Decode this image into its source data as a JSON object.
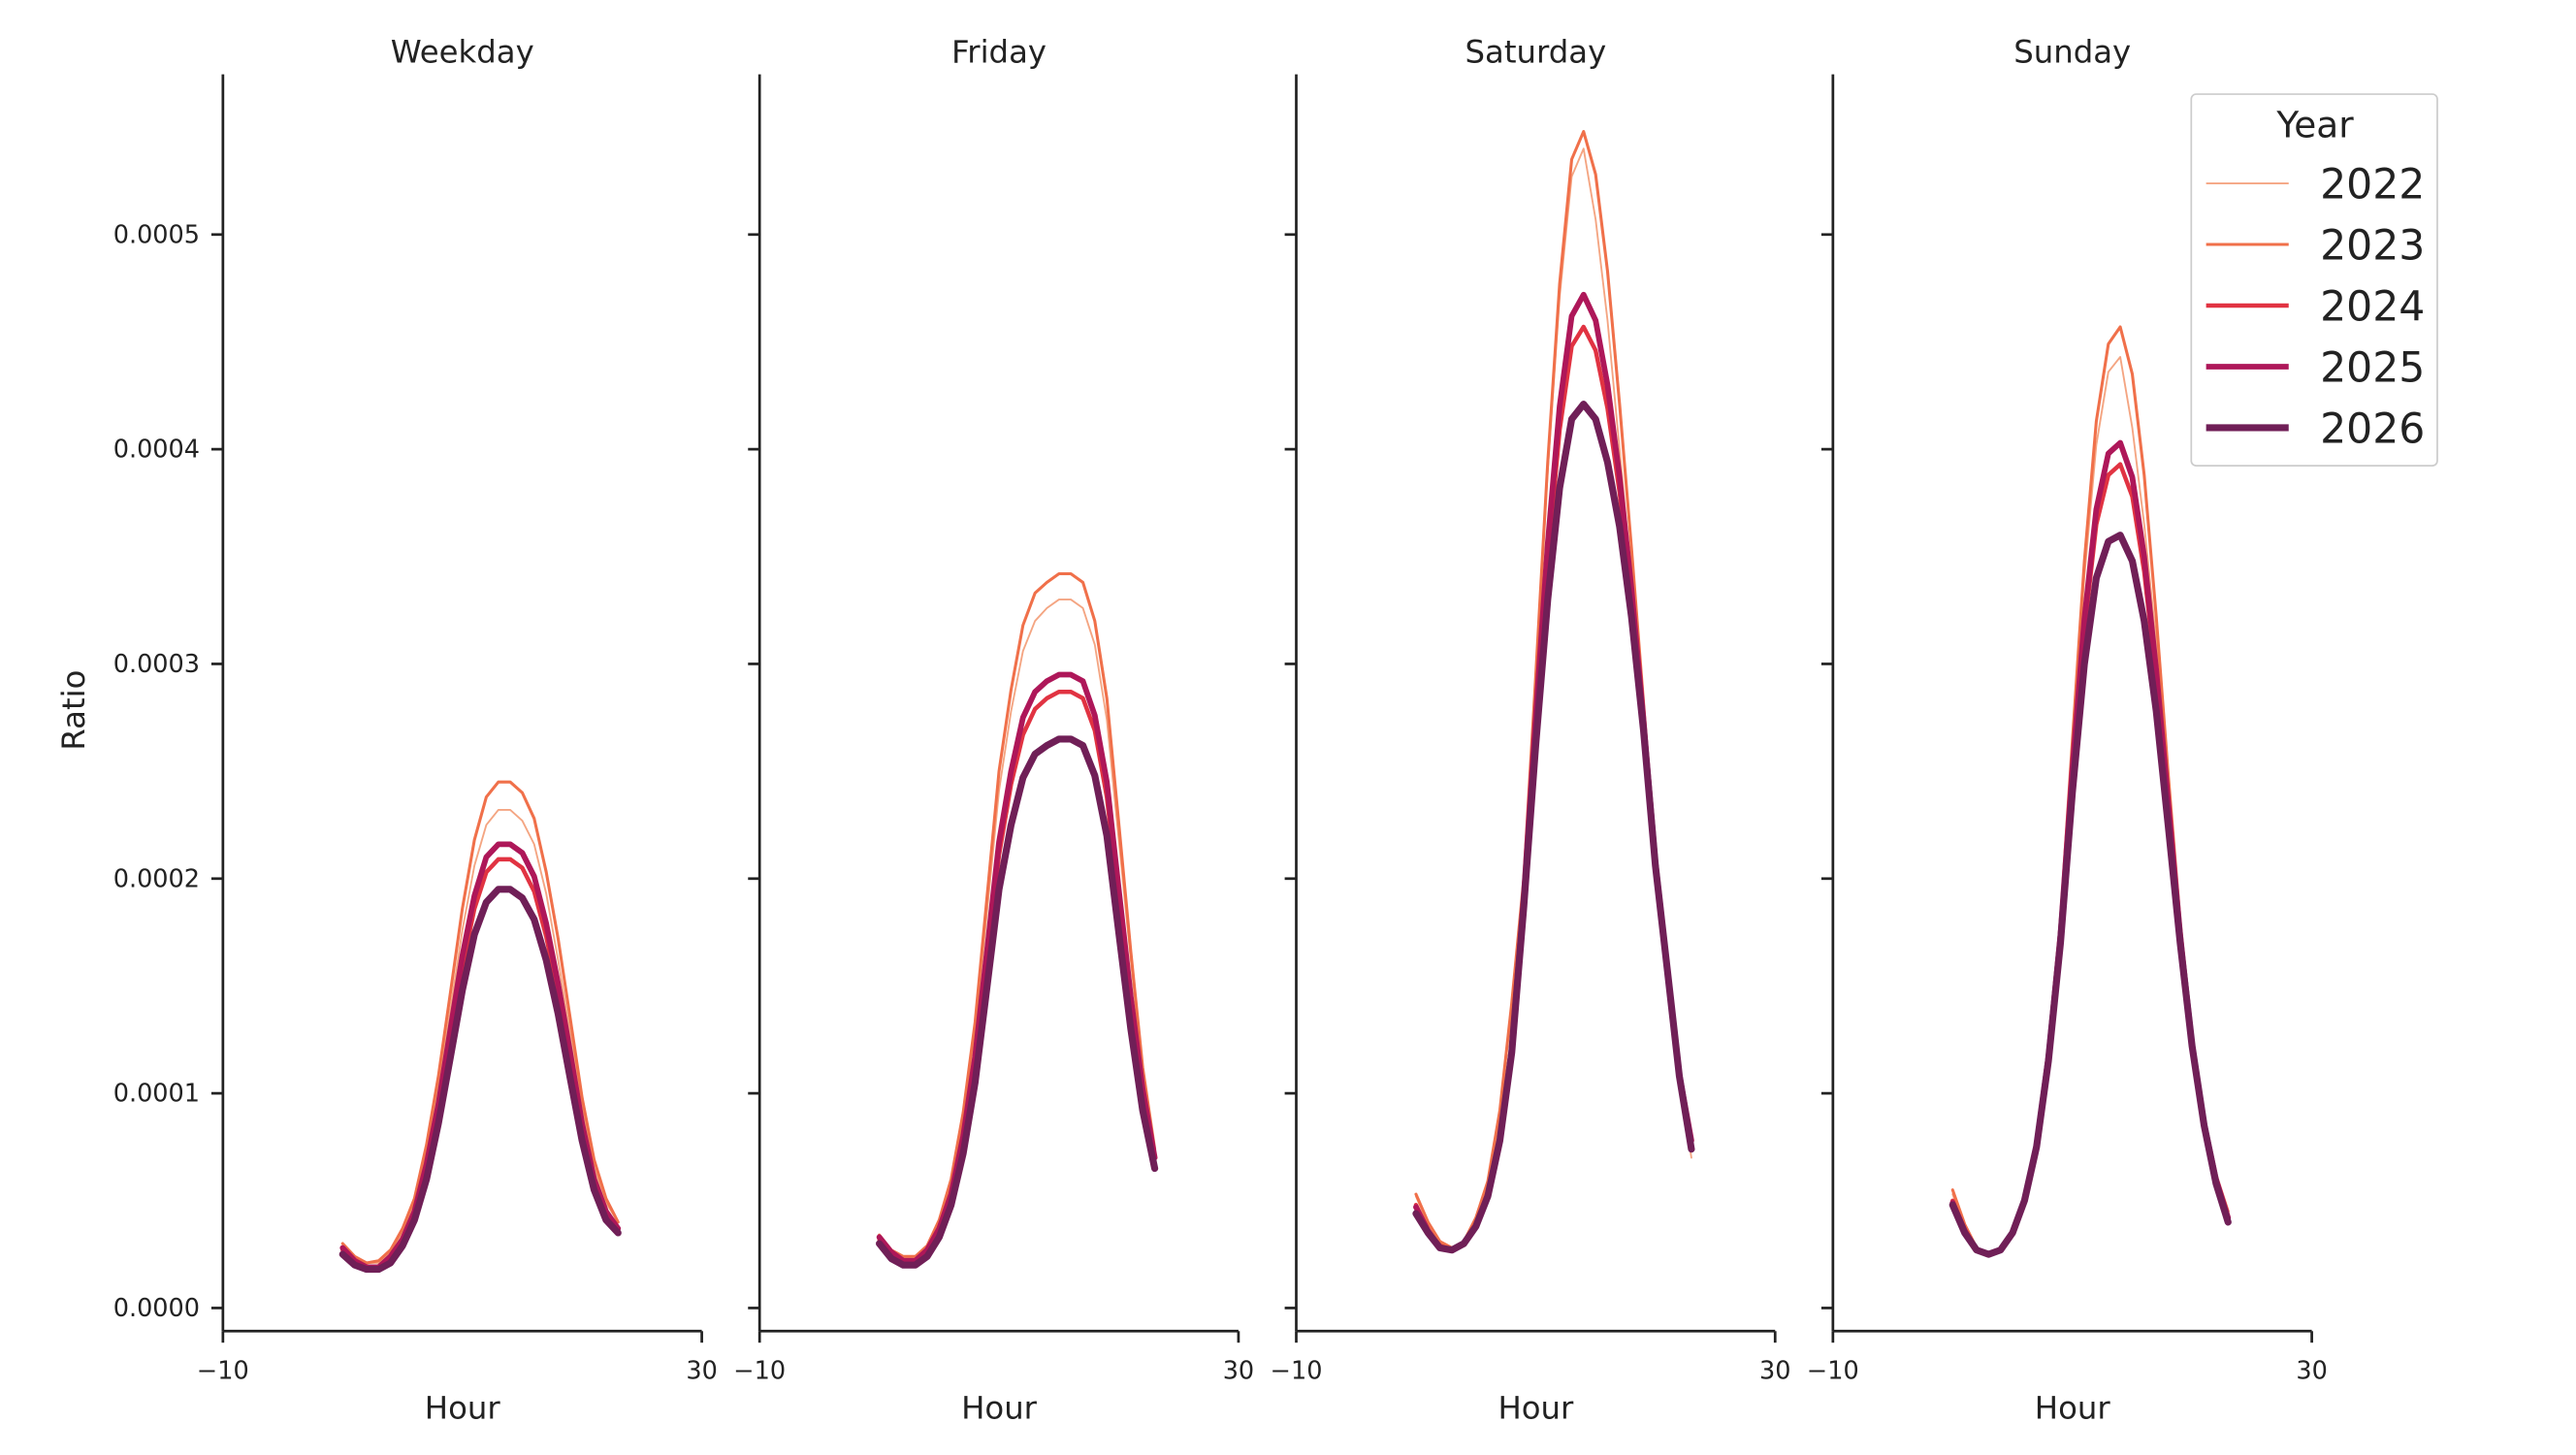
{
  "chart_data": {
    "type": "line",
    "ylabel": "Ratio",
    "ylim": [
      -1.2e-05,
      0.000575
    ],
    "yticks": [
      "0.0000",
      "0.0001",
      "0.0002",
      "0.0003",
      "0.0004",
      "0.0005"
    ],
    "ytick_values": [
      0,
      0.0001,
      0.0002,
      0.0003,
      0.0004,
      0.0005
    ],
    "legend": {
      "title": "Year",
      "placement": "top-right",
      "entries": [
        "2022",
        "2023",
        "2024",
        "2025",
        "2026"
      ]
    },
    "grid": false,
    "series_styles": {
      "2022": {
        "color": "#f4a582"
      },
      "2023": {
        "color": "#f0704a"
      },
      "2024": {
        "color": "#e13342"
      },
      "2025": {
        "color": "#ae1759"
      },
      "2026": {
        "color": "#701f57"
      }
    },
    "x": [
      0,
      1,
      2,
      3,
      4,
      5,
      6,
      7,
      8,
      9,
      10,
      11,
      12,
      13,
      14,
      15,
      16,
      17,
      18,
      19,
      20,
      21,
      22,
      23
    ],
    "panels": [
      {
        "title": "Weekday",
        "xlabel": "Hour",
        "xlim": [
          -10,
          30
        ],
        "xticks": [
          "−10",
          "30"
        ],
        "series": [
          {
            "name": "2022",
            "values": [
              3e-05,
              2.3e-05,
              2.1e-05,
              2.1e-05,
              2.6e-05,
              3.5e-05,
              4.9e-05,
              7.2e-05,
              0.000102,
              0.000139,
              0.000176,
              0.000206,
              0.000225,
              0.000232,
              0.000232,
              0.000227,
              0.000216,
              0.000193,
              0.000162,
              0.000128,
              9.3e-05,
              6.5e-05,
              4.9e-05,
              4e-05
            ]
          },
          {
            "name": "2023",
            "values": [
              3e-05,
              2.4e-05,
              2.1e-05,
              2.2e-05,
              2.7e-05,
              3.7e-05,
              5.1e-05,
              7.6e-05,
              0.000108,
              0.000147,
              0.000186,
              0.000218,
              0.000238,
              0.000245,
              0.000245,
              0.00024,
              0.000228,
              0.000203,
              0.000172,
              0.000135,
              9.8e-05,
              6.9e-05,
              5.1e-05,
              4e-05
            ]
          },
          {
            "name": "2024",
            "values": [
              2.7e-05,
              2.1e-05,
              1.9e-05,
              1.9e-05,
              2.3e-05,
              3.1e-05,
              4.4e-05,
              6.5e-05,
              9.2e-05,
              0.000125,
              0.000159,
              0.000186,
              0.000203,
              0.000209,
              0.000209,
              0.000205,
              0.000194,
              0.000173,
              0.000146,
              0.000115,
              8.4e-05,
              5.9e-05,
              4.4e-05,
              3.7e-05
            ]
          },
          {
            "name": "2025",
            "values": [
              2.8e-05,
              2.2e-05,
              1.9e-05,
              1.9e-05,
              2.4e-05,
              3.2e-05,
              4.5e-05,
              6.7e-05,
              9.5e-05,
              0.00013,
              0.000164,
              0.000192,
              0.00021,
              0.000216,
              0.000216,
              0.000212,
              0.000201,
              0.000179,
              0.000151,
              0.000119,
              8.6e-05,
              6e-05,
              4.5e-05,
              3.7e-05
            ]
          },
          {
            "name": "2026",
            "values": [
              2.5e-05,
              2e-05,
              1.8e-05,
              1.8e-05,
              2.1e-05,
              2.9e-05,
              4.1e-05,
              6e-05,
              8.6e-05,
              0.000117,
              0.000148,
              0.000174,
              0.000189,
              0.000195,
              0.000195,
              0.000191,
              0.000181,
              0.000162,
              0.000137,
              0.000107,
              7.8e-05,
              5.5e-05,
              4.1e-05,
              3.5e-05
            ]
          }
        ]
      },
      {
        "title": "Friday",
        "xlabel": "Hour",
        "xlim": [
          -10,
          30
        ],
        "xticks": [
          "−10",
          "30"
        ],
        "series": [
          {
            "name": "2022",
            "values": [
              3.4e-05,
              2.7e-05,
              2.3e-05,
              2.3e-05,
              2.8e-05,
              4e-05,
              5.8e-05,
              8.8e-05,
              0.000129,
              0.000185,
              0.000241,
              0.000278,
              0.000306,
              0.00032,
              0.000326,
              0.00033,
              0.00033,
              0.000326,
              0.000309,
              0.000274,
              0.000218,
              0.000162,
              0.00011,
              7.2e-05
            ]
          },
          {
            "name": "2023",
            "values": [
              3.4e-05,
              2.7e-05,
              2.4e-05,
              2.4e-05,
              2.9e-05,
              4.1e-05,
              6e-05,
              9.1e-05,
              0.000133,
              0.000192,
              0.00025,
              0.000288,
              0.000318,
              0.000333,
              0.000338,
              0.000342,
              0.000342,
              0.000338,
              0.00032,
              0.000284,
              0.000226,
              0.000166,
              0.000112,
              7.4e-05
            ]
          },
          {
            "name": "2024",
            "values": [
              3.2e-05,
              2.5e-05,
              2.2e-05,
              2.2e-05,
              2.6e-05,
              3.6e-05,
              5.2e-05,
              7.8e-05,
              0.000114,
              0.000162,
              0.000211,
              0.000244,
              0.000267,
              0.000279,
              0.000284,
              0.000287,
              0.000287,
              0.000284,
              0.000269,
              0.000238,
              0.00019,
              0.000141,
              0.0001,
              7e-05
            ]
          },
          {
            "name": "2025",
            "values": [
              3.3e-05,
              2.6e-05,
              2.2e-05,
              2.2e-05,
              2.7e-05,
              3.7e-05,
              5.3e-05,
              8e-05,
              0.000117,
              0.000167,
              0.000217,
              0.00025,
              0.000275,
              0.000287,
              0.000292,
              0.000295,
              0.000295,
              0.000292,
              0.000276,
              0.000245,
              0.000195,
              0.000145,
              0.000102,
              7e-05
            ]
          },
          {
            "name": "2026",
            "values": [
              3e-05,
              2.3e-05,
              2e-05,
              2e-05,
              2.4e-05,
              3.3e-05,
              4.8e-05,
              7.2e-05,
              0.000105,
              0.00015,
              0.000195,
              0.000225,
              0.000247,
              0.000258,
              0.000262,
              0.000265,
              0.000265,
              0.000262,
              0.000248,
              0.00022,
              0.000175,
              0.00013,
              9.2e-05,
              6.5e-05
            ]
          }
        ]
      },
      {
        "title": "Saturday",
        "xlabel": "Hour",
        "xlim": [
          -10,
          30
        ],
        "xticks": [
          "−10",
          "30"
        ],
        "series": [
          {
            "name": "2022",
            "values": [
              5.2e-05,
              3.9e-05,
              3e-05,
              2.7e-05,
              3.1e-05,
              4.1e-05,
              5.8e-05,
              9e-05,
              0.00014,
              0.000199,
              0.000292,
              0.00039,
              0.000471,
              0.000527,
              0.00054,
              0.000507,
              0.00046,
              0.0004,
              0.00034,
              0.000278,
              0.000208,
              0.000157,
              0.000106,
              7e-05
            ]
          },
          {
            "name": "2023",
            "values": [
              5.3e-05,
              4e-05,
              3.1e-05,
              2.8e-05,
              3.1e-05,
              4.2e-05,
              5.9e-05,
              9.2e-05,
              0.000142,
              0.0002,
              0.000294,
              0.000394,
              0.000477,
              0.000535,
              0.000548,
              0.000528,
              0.000483,
              0.000421,
              0.000354,
              0.000282,
              0.00021,
              0.000159,
              0.00011,
              7.6e-05
            ]
          },
          {
            "name": "2024",
            "values": [
              4.8e-05,
              3.6e-05,
              2.9e-05,
              2.7e-05,
              3e-05,
              3.8e-05,
              5.3e-05,
              7.9e-05,
              0.000121,
              0.000191,
              0.000271,
              0.000348,
              0.000409,
              0.000448,
              0.000457,
              0.000446,
              0.000419,
              0.00038,
              0.000331,
              0.000273,
              0.000207,
              0.000158,
              0.000109,
              7.6e-05
            ]
          },
          {
            "name": "2025",
            "values": [
              4.7e-05,
              3.6e-05,
              2.8e-05,
              2.7e-05,
              3e-05,
              3.8e-05,
              5.3e-05,
              7.9e-05,
              0.000121,
              0.000192,
              0.000275,
              0.000356,
              0.00042,
              0.000462,
              0.000472,
              0.00046,
              0.00043,
              0.000387,
              0.000335,
              0.000274,
              0.000208,
              0.000158,
              0.000109,
              7.8e-05
            ]
          },
          {
            "name": "2026",
            "values": [
              4.4e-05,
              3.5e-05,
              2.8e-05,
              2.7e-05,
              3e-05,
              3.8e-05,
              5.2e-05,
              7.8e-05,
              0.000119,
              0.000187,
              0.000262,
              0.00033,
              0.000382,
              0.000414,
              0.000421,
              0.000414,
              0.000394,
              0.000364,
              0.000322,
              0.000269,
              0.000206,
              0.000157,
              0.000108,
              7.4e-05
            ]
          }
        ]
      },
      {
        "title": "Sunday",
        "xlabel": "Hour",
        "xlim": [
          -10,
          30
        ],
        "xticks": [
          "−10",
          "30"
        ],
        "series": [
          {
            "name": "2022",
            "values": [
              5.3e-05,
              3.8e-05,
              2.7e-05,
              2.4e-05,
              2.7e-05,
              3.5e-05,
              5.1e-05,
              7.8e-05,
              0.00012,
              0.000178,
              0.000261,
              0.000341,
              0.000402,
              0.000436,
              0.000443,
              0.00041,
              0.000365,
              0.00031,
              0.000245,
              0.000178,
              0.000124,
              8.7e-05,
              6.1e-05,
              4.4e-05
            ]
          },
          {
            "name": "2023",
            "values": [
              5.5e-05,
              3.9e-05,
              2.8e-05,
              2.5e-05,
              2.7e-05,
              3.6e-05,
              5.2e-05,
              7.9e-05,
              0.000122,
              0.00018,
              0.000264,
              0.000348,
              0.000413,
              0.000449,
              0.000457,
              0.000435,
              0.000388,
              0.000322,
              0.000249,
              0.00018,
              0.000125,
              8.8e-05,
              6.2e-05,
              4.5e-05
            ]
          },
          {
            "name": "2024",
            "values": [
              5e-05,
              3.6e-05,
              2.7e-05,
              2.5e-05,
              2.7e-05,
              3.5e-05,
              5e-05,
              7.6e-05,
              0.000117,
              0.000173,
              0.000248,
              0.000316,
              0.000365,
              0.000388,
              0.000393,
              0.000378,
              0.000343,
              0.000293,
              0.000233,
              0.000173,
              0.000123,
              8.6e-05,
              6e-05,
              4.2e-05
            ]
          },
          {
            "name": "2025",
            "values": [
              4.9e-05,
              3.6e-05,
              2.7e-05,
              2.5e-05,
              2.7e-05,
              3.5e-05,
              5e-05,
              7.6e-05,
              0.000117,
              0.000174,
              0.000251,
              0.000321,
              0.000372,
              0.000398,
              0.000403,
              0.000387,
              0.00035,
              0.000297,
              0.000236,
              0.000174,
              0.000123,
              8.6e-05,
              6e-05,
              4.2e-05
            ]
          },
          {
            "name": "2026",
            "values": [
              4.8e-05,
              3.5e-05,
              2.7e-05,
              2.5e-05,
              2.7e-05,
              3.5e-05,
              5e-05,
              7.5e-05,
              0.000115,
              0.00017,
              0.00024,
              0.0003,
              0.00034,
              0.000357,
              0.00036,
              0.000348,
              0.00032,
              0.000278,
              0.000225,
              0.00017,
              0.000122,
              8.5e-05,
              5.8e-05,
              4e-05
            ]
          }
        ]
      }
    ]
  }
}
